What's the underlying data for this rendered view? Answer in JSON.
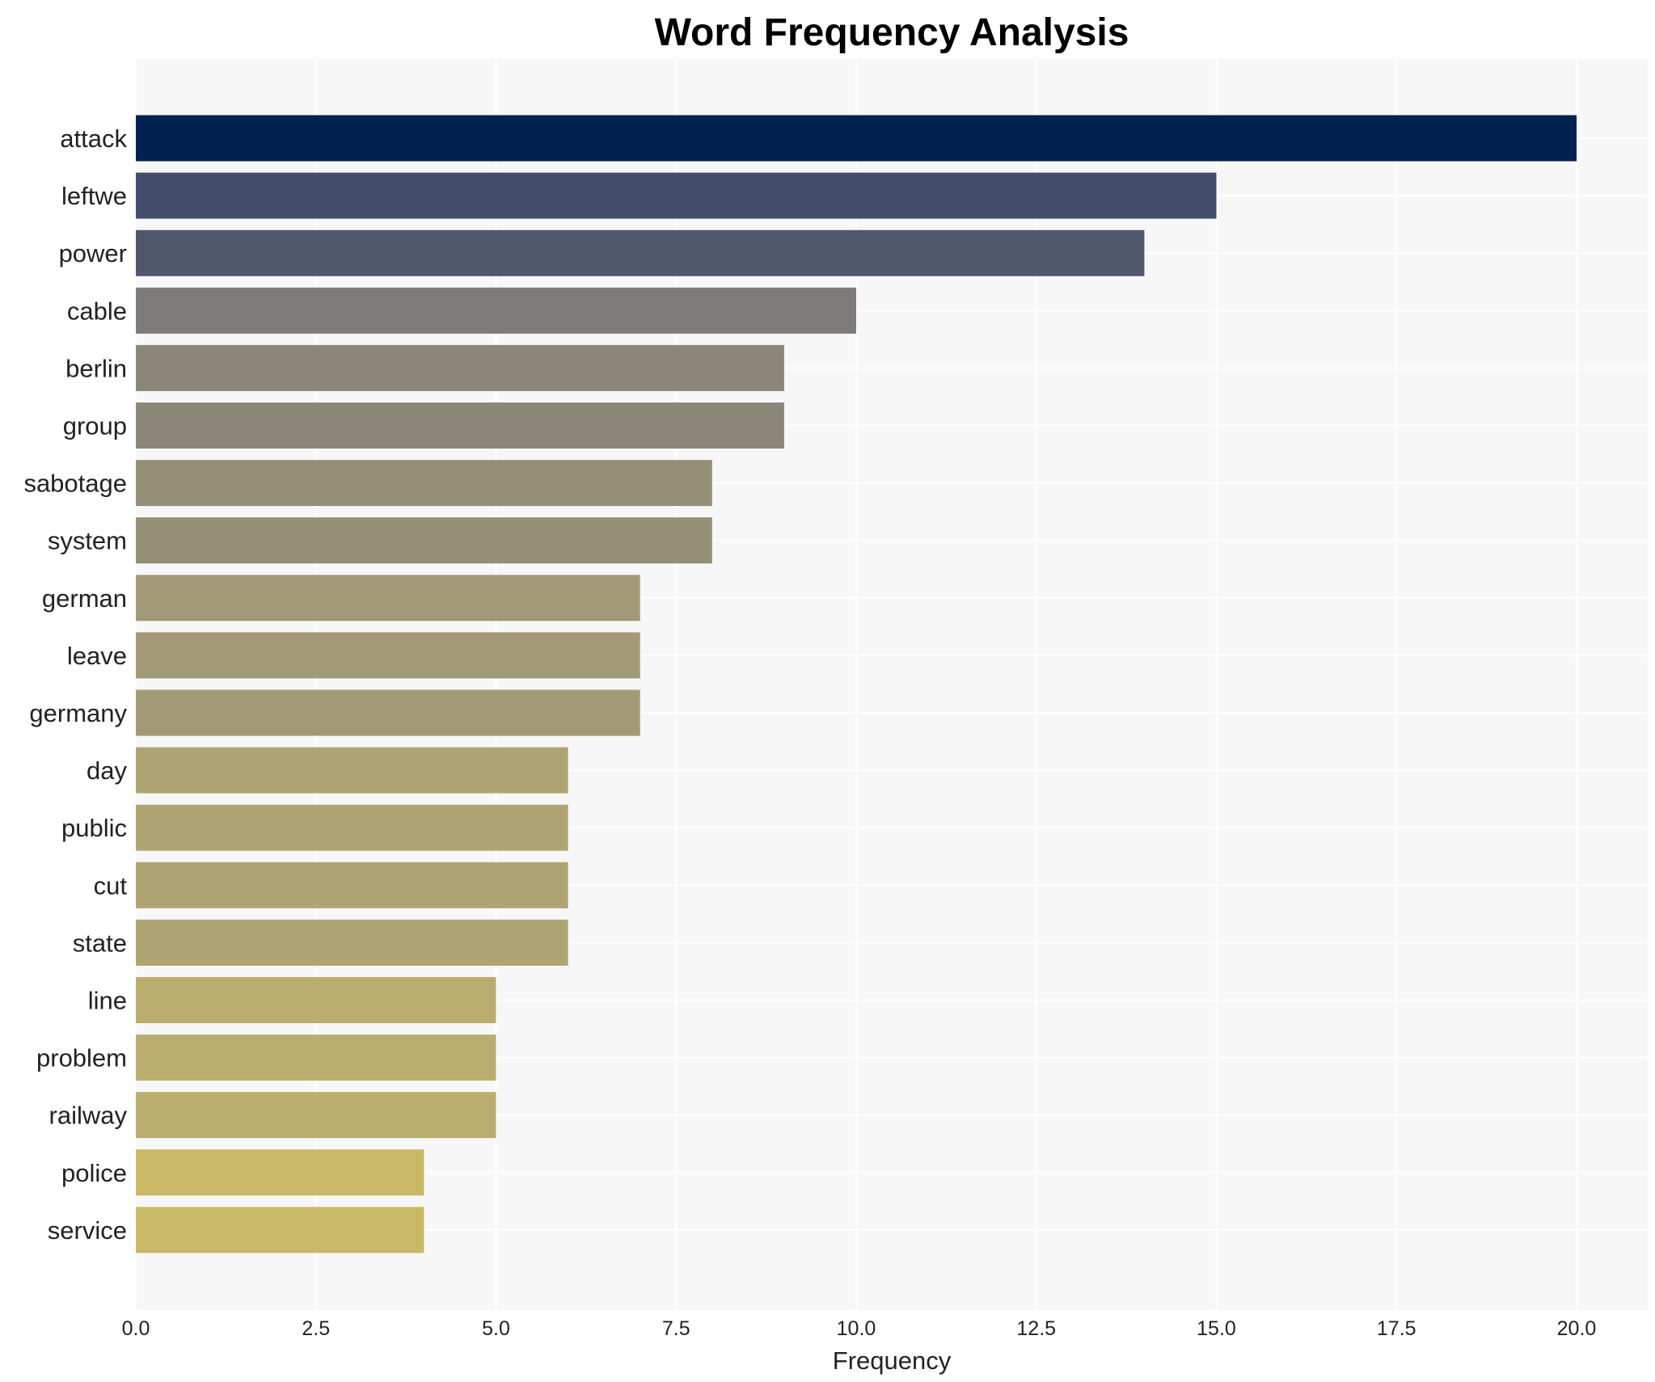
{
  "chart_data": {
    "type": "bar",
    "orientation": "horizontal",
    "title": "Word Frequency Analysis",
    "xlabel": "Frequency",
    "ylabel": "",
    "xlim": [
      0,
      21
    ],
    "xticks": [
      "0.0",
      "2.5",
      "5.0",
      "7.5",
      "10.0",
      "12.5",
      "15.0",
      "17.5",
      "20.0"
    ],
    "grid": true,
    "categories": [
      "attack",
      "leftwe",
      "power",
      "cable",
      "berlin",
      "group",
      "sabotage",
      "system",
      "german",
      "leave",
      "germany",
      "day",
      "public",
      "cut",
      "state",
      "line",
      "problem",
      "railway",
      "police",
      "service"
    ],
    "values": [
      20,
      15,
      14,
      10,
      9,
      9,
      8,
      8,
      7,
      7,
      7,
      6,
      6,
      6,
      6,
      5,
      5,
      5,
      4,
      4
    ],
    "colors": [
      "#00224e",
      "#434e6c",
      "#4f576c",
      "#7d7c78",
      "#8a8678",
      "#8a8678",
      "#968f78",
      "#968f78",
      "#a29a76",
      "#a29a76",
      "#a29a76",
      "#aea573",
      "#aea573",
      "#aea573",
      "#aea573",
      "#baad6e",
      "#baad6e",
      "#baad6e",
      "#c9b866",
      "#c9b866"
    ],
    "plot_background": "#f7f7f7"
  }
}
